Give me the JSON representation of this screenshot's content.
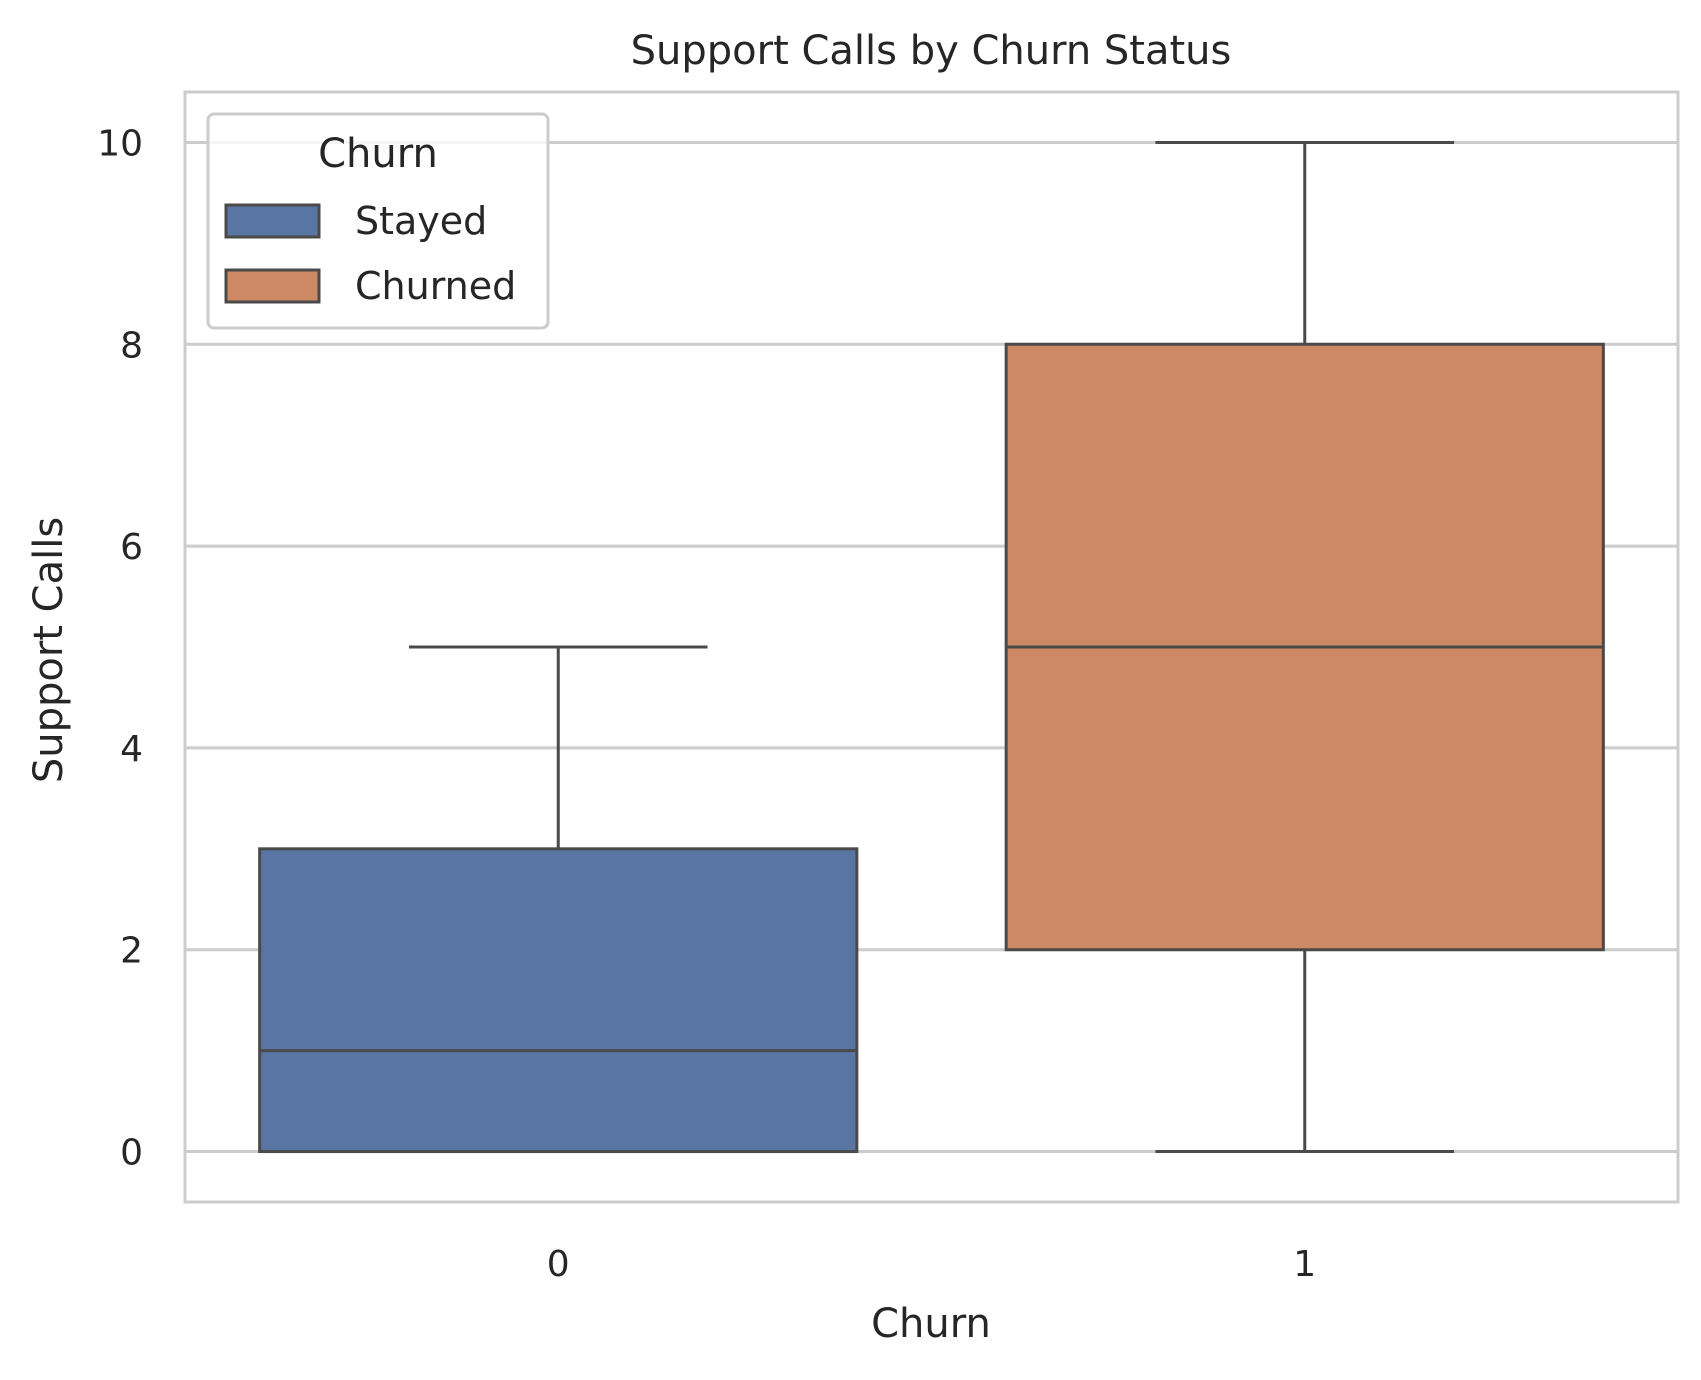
{
  "chart_data": {
    "type": "box",
    "title": "Support Calls by Churn Status",
    "xlabel": "Churn",
    "ylabel": "Support Calls",
    "categories": [
      "0",
      "1"
    ],
    "ylim": [
      -0.5,
      10.5
    ],
    "yticks": [
      0,
      2,
      4,
      6,
      8,
      10
    ],
    "grid": true,
    "legend": {
      "title": "Churn",
      "placement": "top-left",
      "entries": [
        "Stayed",
        "Churned"
      ]
    },
    "series": [
      {
        "name": "Stayed",
        "category": "0",
        "color": "#5875a4",
        "whisker_low": 0,
        "q1": 0,
        "median": 1,
        "q3": 3,
        "whisker_high": 5
      },
      {
        "name": "Churned",
        "category": "1",
        "color": "#cc8963",
        "whisker_low": 0,
        "q1": 2,
        "median": 5,
        "q3": 8,
        "whisker_high": 10
      }
    ],
    "colors": {
      "grid": "#cccccc",
      "frame": "#cccccc",
      "line": "#4a4a4a",
      "text": "#262626"
    }
  }
}
